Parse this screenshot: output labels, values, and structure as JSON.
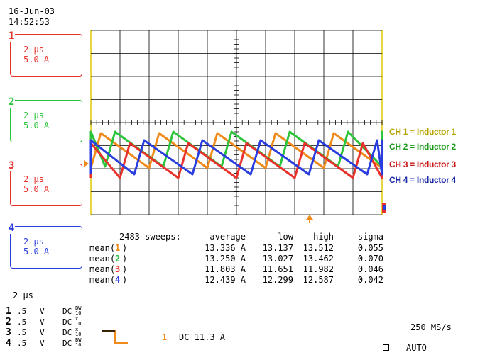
{
  "header": {
    "date": "16-Jun-03",
    "time": "14:52:53"
  },
  "channels": [
    {
      "num": "1",
      "timebase": "2 µs",
      "scale": "5.0 A",
      "color": "#e8312a"
    },
    {
      "num": "2",
      "timebase": "2 µs",
      "scale": "5.0 A",
      "color": "#2bc43a"
    },
    {
      "num": "3",
      "timebase": "2 µs",
      "scale": "5.0 A",
      "color": "#e8312a"
    },
    {
      "num": "4",
      "timebase": "2 µs",
      "scale": "5.0 A",
      "color": "#2a3ee0"
    }
  ],
  "legend": [
    {
      "text": "CH 1 = Inductor 1",
      "color": "#b8a400"
    },
    {
      "text": "CH 2 = Inductor 2",
      "color": "#1a9a1a"
    },
    {
      "text": "CH 3 = Inductor 3",
      "color": "#c81818"
    },
    {
      "text": "CH 4 = Inductor 4",
      "color": "#1a2aa8"
    }
  ],
  "stats": {
    "sweeps": "2483 sweeps:",
    "headers": [
      "average",
      "low",
      "high",
      "sigma"
    ],
    "rows": [
      {
        "label": "mean(",
        "num": "1",
        "close": ")",
        "numcolor": "#f08a1a",
        "average": "13.336 A",
        "low": "13.137",
        "high": "13.512",
        "sigma": "0.055"
      },
      {
        "label": "mean(",
        "num": "2",
        "close": ")",
        "numcolor": "#2bc43a",
        "average": "13.250 A",
        "low": "13.027",
        "high": "13.462",
        "sigma": "0.070"
      },
      {
        "label": "mean(",
        "num": "3",
        "close": ")",
        "numcolor": "#e8312a",
        "average": "11.803 A",
        "low": "11.651",
        "high": "11.982",
        "sigma": "0.046"
      },
      {
        "label": "mean(",
        "num": "4",
        "close": ")",
        "numcolor": "#2a3ee0",
        "average": "12.439 A",
        "low": "12.299",
        "high": "12.587",
        "sigma": "0.042"
      }
    ]
  },
  "footer": {
    "timebase": "2 µs",
    "channels": [
      {
        "num": "1",
        "val": ".5",
        "unit": "V",
        "coupling": "DC",
        "extra": "BW\n10"
      },
      {
        "num": "2",
        "val": ".5",
        "unit": "V",
        "coupling": "DC",
        "extra": "x\n10"
      },
      {
        "num": "3",
        "val": ".5",
        "unit": "V",
        "coupling": "DC",
        "extra": "x\n10"
      },
      {
        "num": "4",
        "val": ".5",
        "unit": "V",
        "coupling": "DC",
        "extra": "BW\n10"
      }
    ],
    "trigger_ch": "1",
    "trigger_text": "DC 11.3 A",
    "sample_rate": "250 MS/s",
    "trigger_mode": "AUTO"
  }
}
